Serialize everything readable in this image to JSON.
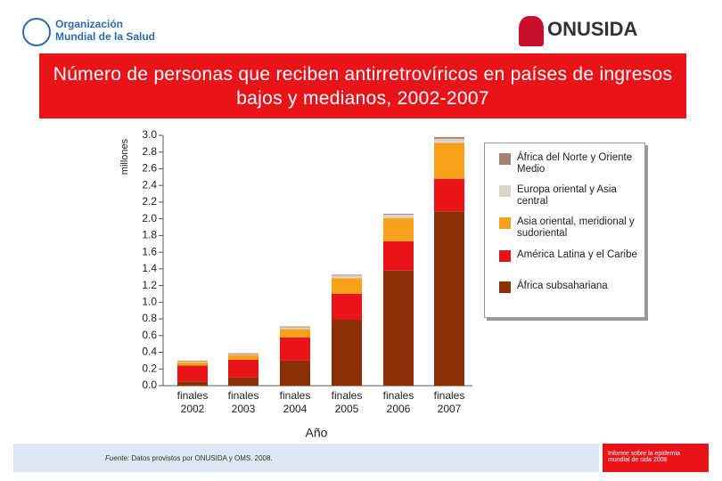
{
  "header": {
    "who": "Organización Mundial de la Salud",
    "unaids": "ONUSIDA"
  },
  "chart_data": {
    "type": "bar",
    "stacked": true,
    "title": "Número de personas que reciben antirretrovíricos en países de ingresos bajos y medianos, 2002-2007",
    "ylabel": "millones",
    "xlabel": "Año",
    "categories": [
      "finales 2002",
      "finales 2003",
      "finales 2004",
      "finales 2005",
      "finales 2006",
      "finales 2007"
    ],
    "series": [
      {
        "name": "África subsahariana",
        "color": "#8b3008",
        "values": [
          0.05,
          0.1,
          0.3,
          0.79,
          1.38,
          2.09
        ]
      },
      {
        "name": "América Latina y el Caribe",
        "color": "#e8141a",
        "values": [
          0.19,
          0.21,
          0.28,
          0.31,
          0.35,
          0.39
        ]
      },
      {
        "name": "Asia oriental, meridional y sudoriental",
        "color": "#f7a11a",
        "values": [
          0.04,
          0.06,
          0.1,
          0.19,
          0.28,
          0.43
        ]
      },
      {
        "name": "Europa oriental y Asia central",
        "color": "#dcd4cc",
        "values": [
          0.01,
          0.01,
          0.02,
          0.03,
          0.04,
          0.05
        ]
      },
      {
        "name": "África del Norte y Oriente Medio",
        "color": "#a08270",
        "values": [
          0.01,
          0.01,
          0.01,
          0.01,
          0.01,
          0.02
        ]
      }
    ],
    "ylim": [
      0,
      3
    ],
    "yticks": [
      {
        "value": 0,
        "label": "0.0"
      },
      0.2,
      0.4,
      0.6,
      0.8,
      {
        "value": 1,
        "label": "1.0"
      },
      1.2,
      1.4,
      1.6,
      1.8,
      {
        "value": 2,
        "label": "2.0"
      },
      2.2,
      2.4,
      2.6,
      2.8,
      {
        "value": 3,
        "label": "3.0"
      }
    ],
    "grid": false,
    "legend": "right"
  },
  "footer": {
    "source_label": "Fuente:",
    "source": "Datos provistos por ONUSIDA y OMS. 2008.",
    "report": "Informe sobre la epidemia mundial de sida 2008"
  }
}
